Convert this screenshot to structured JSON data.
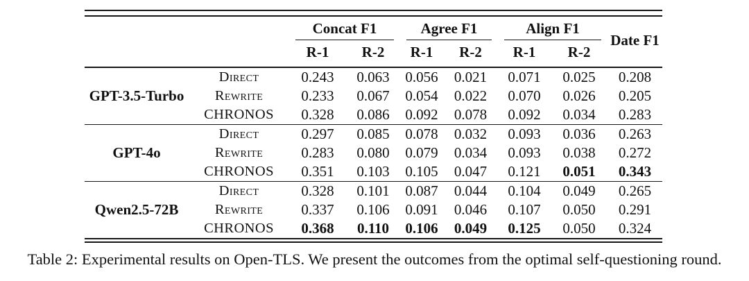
{
  "caption": "Table 2: Experimental results on Open-TLS. We present the outcomes from the optimal self-questioning round.",
  "table": {
    "column_groups": [
      {
        "label": "Concat F1",
        "children": [
          "R-1",
          "R-2"
        ]
      },
      {
        "label": "Agree F1",
        "children": [
          "R-1",
          "R-2"
        ]
      },
      {
        "label": "Align F1",
        "children": [
          "R-1",
          "R-2"
        ]
      },
      {
        "label": "Date F1",
        "children": []
      }
    ],
    "groups": [
      {
        "model": "GPT-3.5-Turbo",
        "rows": [
          {
            "method": "Direct",
            "values": [
              "0.243",
              "0.063",
              "0.056",
              "0.021",
              "0.071",
              "0.025",
              "0.208"
            ],
            "bold": [
              false,
              false,
              false,
              false,
              false,
              false,
              false
            ]
          },
          {
            "method": "Rewrite",
            "values": [
              "0.233",
              "0.067",
              "0.054",
              "0.022",
              "0.070",
              "0.026",
              "0.205"
            ],
            "bold": [
              false,
              false,
              false,
              false,
              false,
              false,
              false
            ]
          },
          {
            "method": "CHRONOS",
            "values": [
              "0.328",
              "0.086",
              "0.092",
              "0.078",
              "0.092",
              "0.034",
              "0.283"
            ],
            "bold": [
              false,
              false,
              false,
              false,
              false,
              false,
              false
            ]
          }
        ]
      },
      {
        "model": "GPT-4o",
        "rows": [
          {
            "method": "Direct",
            "values": [
              "0.297",
              "0.085",
              "0.078",
              "0.032",
              "0.093",
              "0.036",
              "0.263"
            ],
            "bold": [
              false,
              false,
              false,
              false,
              false,
              false,
              false
            ]
          },
          {
            "method": "Rewrite",
            "values": [
              "0.283",
              "0.080",
              "0.079",
              "0.034",
              "0.093",
              "0.038",
              "0.272"
            ],
            "bold": [
              false,
              false,
              false,
              false,
              false,
              false,
              false
            ]
          },
          {
            "method": "CHRONOS",
            "values": [
              "0.351",
              "0.103",
              "0.105",
              "0.047",
              "0.121",
              "0.051",
              "0.343"
            ],
            "bold": [
              false,
              false,
              false,
              false,
              false,
              true,
              true
            ]
          }
        ]
      },
      {
        "model": "Qwen2.5-72B",
        "rows": [
          {
            "method": "Direct",
            "values": [
              "0.328",
              "0.101",
              "0.087",
              "0.044",
              "0.104",
              "0.049",
              "0.265"
            ],
            "bold": [
              false,
              false,
              false,
              false,
              false,
              false,
              false
            ]
          },
          {
            "method": "Rewrite",
            "values": [
              "0.337",
              "0.106",
              "0.091",
              "0.046",
              "0.107",
              "0.050",
              "0.291"
            ],
            "bold": [
              false,
              false,
              false,
              false,
              false,
              false,
              false
            ]
          },
          {
            "method": "CHRONOS",
            "values": [
              "0.368",
              "0.110",
              "0.106",
              "0.049",
              "0.125",
              "0.050",
              "0.324"
            ],
            "bold": [
              true,
              true,
              true,
              true,
              true,
              false,
              false
            ]
          }
        ]
      }
    ]
  }
}
